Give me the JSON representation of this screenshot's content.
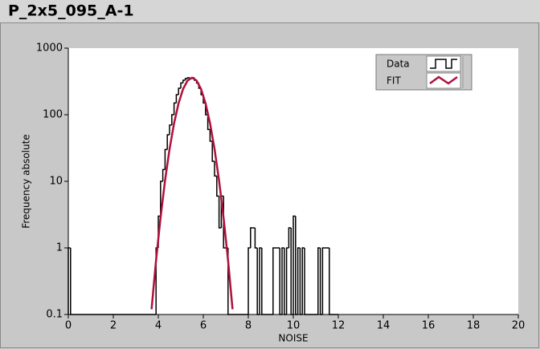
{
  "chart_data": {
    "type": "histogram",
    "title": "P_2x5_095_A-1",
    "x_label": "NOISE",
    "y_label": "Frequency absolute",
    "xlim": [
      0,
      20
    ],
    "xticks": [
      0,
      2,
      4,
      6,
      8,
      10,
      12,
      14,
      16,
      18,
      20
    ],
    "ylim": [
      0.1,
      1000
    ],
    "yticks": [
      0.1,
      1,
      10,
      100,
      1000
    ],
    "log_y": true,
    "legend": "upper right",
    "bins": [
      0,
      0.1,
      0.2,
      0.3,
      0.4,
      0.5,
      0.6,
      0.7,
      0.8,
      0.9,
      1,
      1.1,
      1.2,
      1.3,
      1.4,
      1.5,
      1.6,
      1.7,
      1.8,
      1.9,
      2,
      2.1,
      2.2,
      2.3,
      2.4,
      2.5,
      2.6,
      2.7,
      2.8,
      2.9,
      3,
      3.1,
      3.2,
      3.3,
      3.4,
      3.5,
      3.6,
      3.7,
      3.8,
      3.9,
      4,
      4.1,
      4.2,
      4.3,
      4.4,
      4.5,
      4.6,
      4.7,
      4.8,
      4.9,
      5,
      5.1,
      5.2,
      5.3,
      5.4,
      5.5,
      5.6,
      5.7,
      5.8,
      5.9,
      6,
      6.1,
      6.2,
      6.3,
      6.4,
      6.5,
      6.6,
      6.7,
      6.8,
      6.9,
      7,
      7.1,
      7.2,
      7.3,
      7.4,
      7.5,
      7.6,
      7.7,
      7.8,
      7.9,
      8,
      8.1,
      8.2,
      8.3,
      8.4,
      8.5,
      8.6,
      8.7,
      8.8,
      8.9,
      9,
      9.1,
      9.2,
      9.3,
      9.4,
      9.5,
      9.6,
      9.7,
      9.8,
      9.9,
      10,
      10.1,
      10.2,
      10.3,
      10.4,
      10.5,
      10.6,
      10.7,
      10.8,
      10.9,
      11,
      11.1,
      11.2,
      11.3,
      11.4,
      11.5,
      11.6,
      11.7,
      11.8,
      11.9,
      12
    ],
    "series": [
      {
        "name": "Data",
        "color": "#000000",
        "values": [
          1,
          0,
          0,
          0,
          0,
          0,
          0,
          0,
          0,
          0,
          0,
          0,
          0,
          0,
          0,
          0,
          0,
          0,
          0,
          0,
          0,
          0,
          0,
          0,
          0,
          0,
          0,
          0,
          0,
          0,
          0,
          0,
          0,
          0,
          0,
          0,
          0,
          0,
          0,
          1,
          3,
          10,
          15,
          30,
          50,
          70,
          100,
          150,
          200,
          250,
          300,
          330,
          350,
          360,
          350,
          360,
          330,
          300,
          250,
          200,
          150,
          100,
          60,
          40,
          20,
          12,
          6,
          2,
          6,
          1,
          1,
          0,
          0,
          0,
          0,
          0,
          0,
          0,
          0,
          0,
          1,
          2,
          2,
          1,
          0,
          1,
          0,
          0,
          0,
          0,
          0,
          1,
          1,
          1,
          0,
          1,
          0,
          1,
          2,
          0,
          3,
          0,
          1,
          0,
          1,
          0,
          0,
          0,
          0,
          0,
          0,
          1,
          0,
          1,
          1,
          1,
          0,
          0,
          0,
          0
        ]
      },
      {
        "name": "FIT",
        "color": "#b0103c",
        "x": [
          3.7,
          3.9,
          4.1,
          4.3,
          4.5,
          4.7,
          4.9,
          5.1,
          5.3,
          5.5,
          5.7,
          5.9,
          6.1,
          6.3,
          6.5,
          6.7,
          6.9,
          7.1,
          7.3
        ],
        "values": [
          0.12,
          0.65,
          2.85,
          10.3,
          30.5,
          74.1,
          148,
          243,
          326,
          360,
          326,
          243,
          148,
          74.1,
          30.5,
          10.3,
          2.85,
          0.65,
          0.12
        ]
      }
    ]
  }
}
